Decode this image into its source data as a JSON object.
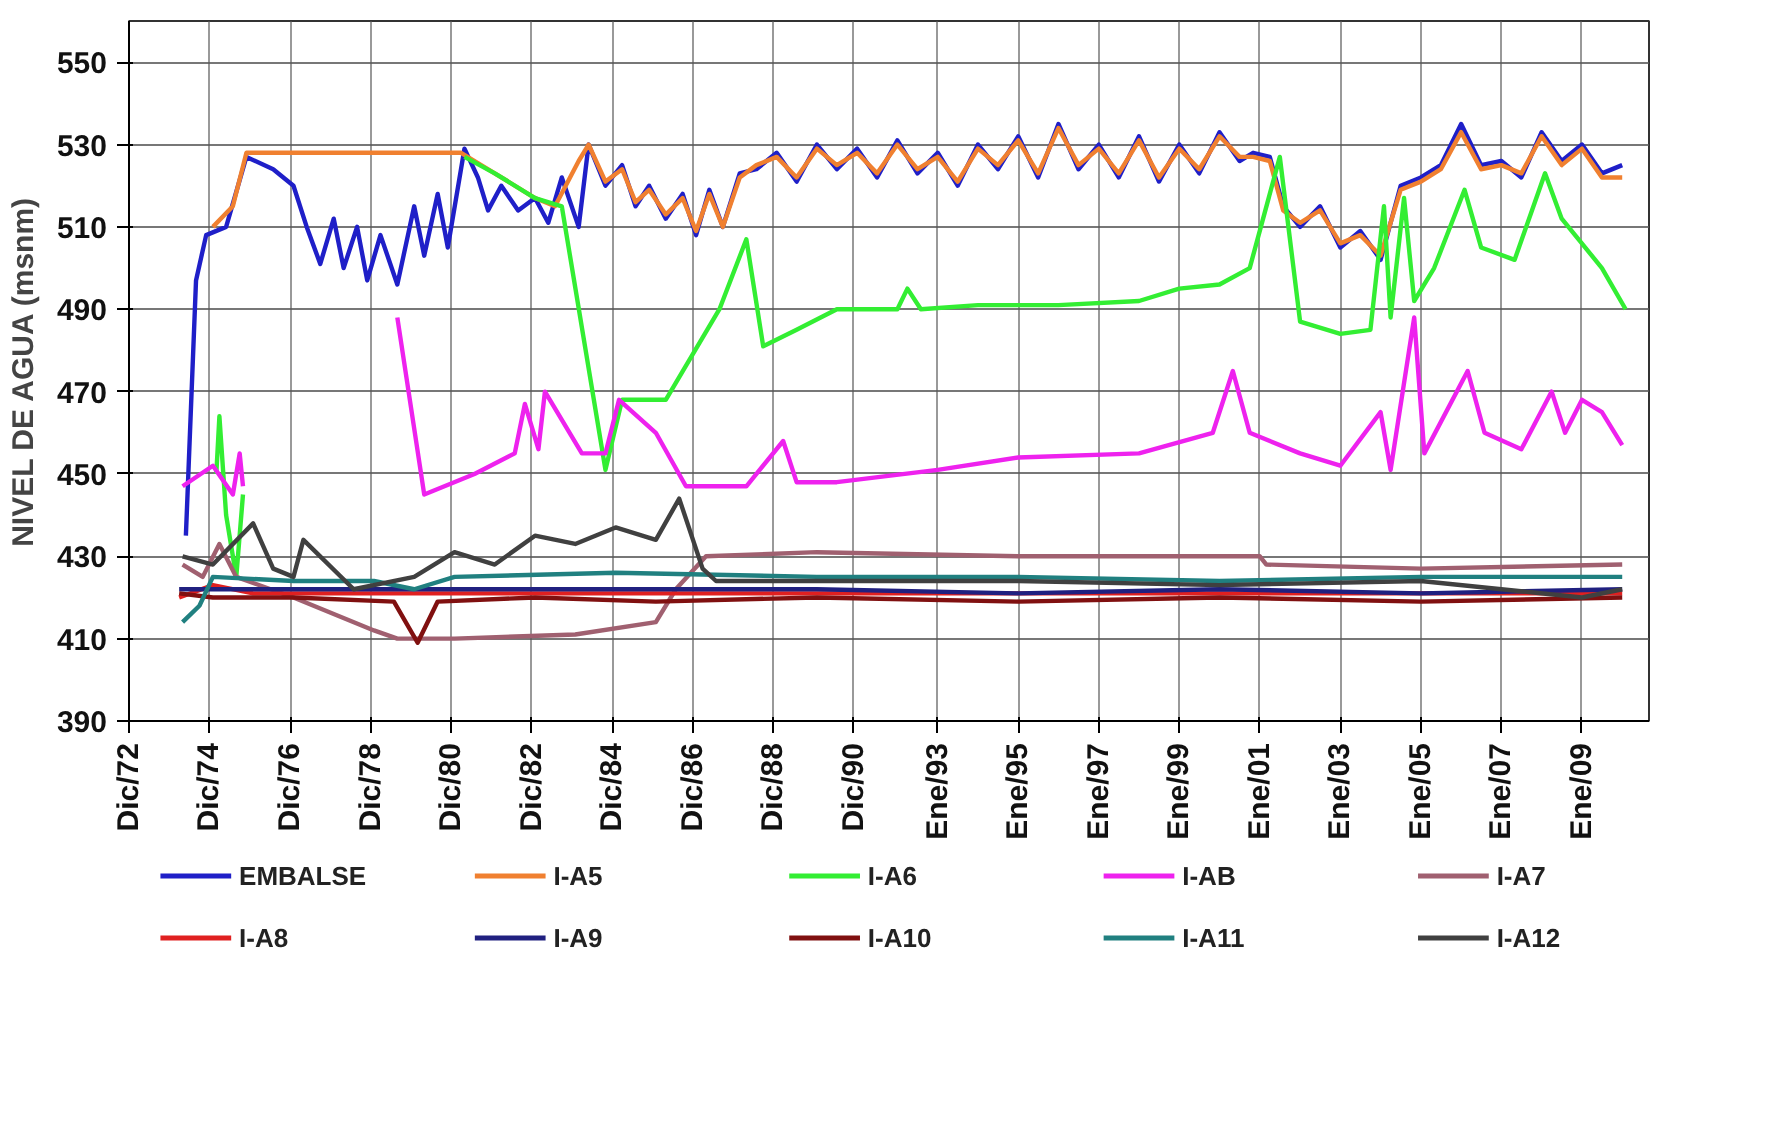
{
  "chart_data": {
    "type": "line",
    "ylabel": "NIVEL DE AGUA (msnm)",
    "xlim": [
      "1972-12",
      "2010-09"
    ],
    "ylim": [
      390,
      560
    ],
    "yticks": [
      390,
      410,
      430,
      450,
      470,
      490,
      510,
      530,
      550
    ],
    "xticks": [
      {
        "value": "1972-12",
        "label": "Dic/72"
      },
      {
        "value": "1974-12",
        "label": "Dic/74"
      },
      {
        "value": "1976-12",
        "label": "Dic/76"
      },
      {
        "value": "1978-12",
        "label": "Dic/78"
      },
      {
        "value": "1980-12",
        "label": "Dic/80"
      },
      {
        "value": "1982-12",
        "label": "Dic/82"
      },
      {
        "value": "1984-12",
        "label": "Dic/84"
      },
      {
        "value": "1986-12",
        "label": "Dic/86"
      },
      {
        "value": "1988-12",
        "label": "Dic/88"
      },
      {
        "value": "1990-12",
        "label": "Dic/90"
      },
      {
        "value": "1993-01",
        "label": "Ene/93"
      },
      {
        "value": "1995-01",
        "label": "Ene/95"
      },
      {
        "value": "1997-01",
        "label": "Ene/97"
      },
      {
        "value": "1999-01",
        "label": "Ene/99"
      },
      {
        "value": "2001-01",
        "label": "Ene/01"
      },
      {
        "value": "2003-01",
        "label": "Ene/03"
      },
      {
        "value": "2005-01",
        "label": "Ene/05"
      },
      {
        "value": "2007-01",
        "label": "Ene/07"
      },
      {
        "value": "2009-01",
        "label": "Ene/09"
      }
    ],
    "grid": true,
    "legend": "bottom",
    "line_style": "solid",
    "series": [
      {
        "name": "EMBALSE",
        "color": "#1f1fc8",
        "x": [
          "1974-05",
          "1974-08",
          "1974-11",
          "1975-05",
          "1975-11",
          "1976-07",
          "1977-01",
          "1977-05",
          "1977-09",
          "1978-01",
          "1978-04",
          "1978-08",
          "1978-11",
          "1979-03",
          "1979-08",
          "1980-01",
          "1980-04",
          "1980-08",
          "1980-11",
          "1981-04",
          "1981-08",
          "1981-11",
          "1982-03",
          "1982-08",
          "1983-01",
          "1983-05",
          "1983-09",
          "1984-02",
          "1984-05",
          "1984-10",
          "1985-03",
          "1985-07",
          "1985-11",
          "1986-04",
          "1986-09",
          "1987-01",
          "1987-05",
          "1987-09",
          "1988-02",
          "1988-07",
          "1989-01",
          "1989-07",
          "1990-01",
          "1990-07",
          "1991-01",
          "1991-07",
          "1992-01",
          "1992-07",
          "1993-01",
          "1993-07",
          "1994-01",
          "1994-07",
          "1995-01",
          "1995-07",
          "1996-01",
          "1996-07",
          "1997-01",
          "1997-07",
          "1998-01",
          "1998-07",
          "1999-01",
          "1999-07",
          "2000-01",
          "2000-07",
          "2000-11",
          "2001-04",
          "2001-08",
          "2002-01",
          "2002-07",
          "2003-01",
          "2003-07",
          "2004-01",
          "2004-07",
          "2005-01",
          "2005-07",
          "2006-01",
          "2006-07",
          "2007-01",
          "2007-07",
          "2008-01",
          "2008-07",
          "2009-01",
          "2009-07",
          "2010-01"
        ],
        "values": [
          435,
          497,
          508,
          510,
          527,
          524,
          520,
          510,
          501,
          512,
          500,
          510,
          497,
          508,
          496,
          515,
          503,
          518,
          505,
          529,
          522,
          514,
          520,
          514,
          517,
          511,
          522,
          510,
          530,
          520,
          525,
          515,
          520,
          512,
          518,
          508,
          519,
          510,
          523,
          524,
          528,
          521,
          530,
          524,
          529,
          522,
          531,
          523,
          528,
          520,
          530,
          524,
          532,
          522,
          535,
          524,
          530,
          522,
          532,
          521,
          530,
          523,
          533,
          526,
          528,
          527,
          515,
          510,
          515,
          505,
          509,
          502,
          520,
          522,
          525,
          535,
          525,
          526,
          522,
          533,
          526,
          530,
          523,
          525
        ]
      },
      {
        "name": "I-A5",
        "color": "#f08030",
        "x": [
          "1975-01",
          "1975-07",
          "1975-11",
          "1981-03",
          "1982-01",
          "1983-01",
          "1983-07",
          "1984-02",
          "1984-05",
          "1984-10",
          "1985-03",
          "1985-07",
          "1985-11",
          "1986-04",
          "1986-09",
          "1987-01",
          "1987-05",
          "1987-09",
          "1988-02",
          "1988-07",
          "1989-01",
          "1989-07",
          "1990-01",
          "1990-07",
          "1991-01",
          "1991-07",
          "1992-01",
          "1992-07",
          "1993-01",
          "1993-07",
          "1994-01",
          "1994-07",
          "1995-01",
          "1995-07",
          "1996-01",
          "1996-07",
          "1997-01",
          "1997-07",
          "1998-01",
          "1998-07",
          "1999-01",
          "1999-07",
          "2000-01",
          "2000-07",
          "2000-11",
          "2001-04",
          "2001-08",
          "2002-01",
          "2002-07",
          "2003-01",
          "2003-07",
          "2004-01",
          "2004-07",
          "2005-01",
          "2005-07",
          "2006-01",
          "2006-07",
          "2007-01",
          "2007-07",
          "2008-01",
          "2008-07",
          "2009-01",
          "2009-07",
          "2010-01"
        ],
        "values": [
          510,
          515,
          528,
          528,
          523,
          517,
          515,
          526,
          530,
          521,
          524,
          516,
          519,
          513,
          517,
          509,
          518,
          510,
          522,
          525,
          527,
          522,
          529,
          525,
          528,
          523,
          530,
          524,
          527,
          521,
          529,
          525,
          531,
          523,
          534,
          525,
          529,
          523,
          531,
          522,
          529,
          524,
          532,
          527,
          527,
          526,
          514,
          511,
          514,
          506,
          508,
          503,
          519,
          521,
          524,
          533,
          524,
          525,
          523,
          532,
          525,
          529,
          522,
          522
        ]
      },
      {
        "name": "I-A6",
        "color": "#33ee33",
        "x": [
          "1975-02",
          "1975-03",
          "1975-05",
          "1975-08",
          "1975-10",
          null,
          "1981-04",
          "1982-01",
          "1983-01",
          "1983-09",
          "1984-10",
          "1985-03",
          "1986-04",
          "1987-08",
          "1988-04",
          "1988-09",
          "1989-07",
          "1990-07",
          "1992-01",
          "1992-04",
          "1992-08",
          "1994-01",
          "1996-01",
          "1998-01",
          "1999-01",
          "2000-01",
          "2000-10",
          "2001-07",
          "2002-01",
          "2003-01",
          "2003-10",
          "2004-02",
          "2004-04",
          "2004-08",
          "2004-11",
          "2005-05",
          "2006-02",
          "2006-07",
          "2007-05",
          "2008-02",
          "2008-07",
          "2009-07",
          "2010-02"
        ],
        "values": [
          450,
          464,
          440,
          425,
          445,
          null,
          527,
          523,
          517,
          515,
          451,
          468,
          468,
          490,
          507,
          481,
          485,
          490,
          490,
          495,
          490,
          491,
          491,
          492,
          495,
          496,
          500,
          527,
          487,
          484,
          485,
          515,
          488,
          517,
          492,
          500,
          519,
          505,
          502,
          523,
          512,
          500,
          490
        ]
      },
      {
        "name": "I-AB",
        "color": "#ee22ee",
        "x": [
          "1974-04",
          "1975-01",
          "1975-07",
          "1975-09",
          "1975-10",
          null,
          "1979-08",
          "1980-04",
          "1981-07",
          "1982-07",
          "1982-10",
          "1983-02",
          "1983-04",
          "1984-03",
          "1984-10",
          "1985-02",
          "1986-01",
          "1986-10",
          "1988-04",
          "1989-03",
          "1989-07",
          "1990-07",
          "1993-01",
          "1995-01",
          "1998-01",
          "1999-11",
          "2000-05",
          "2000-10",
          "2002-01",
          "2003-01",
          "2004-01",
          "2004-04",
          "2004-11",
          "2005-02",
          "2006-03",
          "2006-08",
          "2007-07",
          "2008-04",
          "2008-08",
          "2009-01",
          "2009-07",
          "2010-01"
        ],
        "values": [
          447,
          452,
          445,
          455,
          447,
          null,
          488,
          445,
          450,
          455,
          467,
          456,
          470,
          455,
          455,
          468,
          460,
          447,
          447,
          458,
          448,
          448,
          451,
          454,
          455,
          460,
          475,
          460,
          455,
          452,
          465,
          451,
          488,
          455,
          475,
          460,
          456,
          470,
          460,
          468,
          465,
          457
        ]
      },
      {
        "name": "I-A7",
        "color": "#a06070",
        "x": [
          "1974-04",
          "1974-10",
          "1975-03",
          "1975-08",
          "1977-01",
          "1979-01",
          "1979-08",
          "1981-01",
          "1984-01",
          "1986-01",
          "1986-07",
          "1987-04",
          "1990-01",
          "1995-01",
          "2001-01",
          "2001-03",
          "2005-01",
          "2010-01"
        ],
        "values": [
          428,
          425,
          433,
          425,
          420,
          412,
          410,
          410,
          411,
          414,
          422,
          430,
          431,
          430,
          430,
          428,
          427,
          428
        ]
      },
      {
        "name": "I-A8",
        "color": "#e02020",
        "x": [
          "1974-03",
          "1975-01",
          "1976-01",
          "1980-01",
          "1985-01",
          "1990-01",
          "1995-01",
          "2000-01",
          "2005-01",
          "2010-01"
        ],
        "values": [
          420,
          423,
          421,
          421,
          421,
          421,
          421,
          421,
          421,
          421
        ]
      },
      {
        "name": "I-A9",
        "color": "#202080",
        "x": [
          "1974-03",
          "1975-01",
          "1976-01",
          "1980-01",
          "1985-01",
          "1990-01",
          "1995-01",
          "2000-01",
          "2005-01",
          "2010-01"
        ],
        "values": [
          422,
          422,
          422,
          422,
          422,
          422,
          421,
          422,
          421,
          422
        ]
      },
      {
        "name": "I-A10",
        "color": "#801010",
        "x": [
          "1974-03",
          "1975-01",
          "1977-01",
          "1979-07",
          "1980-02",
          "1980-08",
          "1983-01",
          "1986-01",
          "1990-01",
          "1995-01",
          "2000-01",
          "2005-01",
          "2010-01"
        ],
        "values": [
          421,
          420,
          420,
          419,
          409,
          419,
          420,
          419,
          420,
          419,
          420,
          419,
          420
        ]
      },
      {
        "name": "I-A11",
        "color": "#208080",
        "x": [
          "1974-04",
          "1974-09",
          "1975-01",
          "1977-01",
          "1979-01",
          "1980-01",
          "1981-01",
          "1985-01",
          "1990-01",
          "1995-01",
          "2000-01",
          "2005-01",
          "2010-01"
        ],
        "values": [
          414,
          418,
          425,
          424,
          424,
          422,
          425,
          426,
          425,
          425,
          424,
          425,
          425
        ]
      },
      {
        "name": "I-A12",
        "color": "#404040",
        "x": [
          "1974-04",
          "1975-01",
          "1976-01",
          "1976-07",
          "1977-01",
          "1977-04",
          "1978-07",
          "1980-01",
          "1981-01",
          "1982-01",
          "1983-01",
          "1984-01",
          "1985-01",
          "1986-01",
          "1986-08",
          "1987-03",
          "1987-07",
          "1990-01",
          "1995-01",
          "2000-01",
          "2005-01",
          "2009-01",
          "2010-01"
        ],
        "values": [
          430,
          428,
          438,
          427,
          425,
          434,
          422,
          425,
          431,
          428,
          435,
          433,
          437,
          434,
          444,
          427,
          424,
          424,
          424,
          423,
          424,
          420,
          422
        ]
      }
    ]
  }
}
